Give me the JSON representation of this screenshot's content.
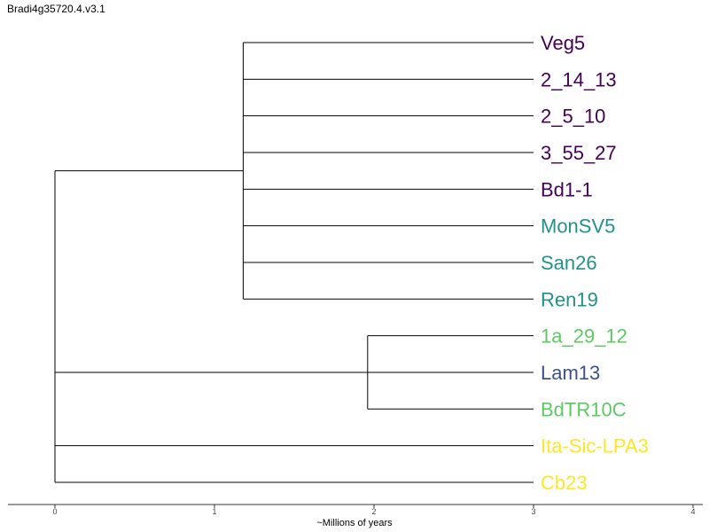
{
  "title": "Bradi4g35720.4.v3.1",
  "axis": {
    "label": "~Millions of years",
    "ticks": [
      0,
      1,
      2,
      3,
      4
    ],
    "range": [
      0,
      4
    ]
  },
  "colors": {
    "group_a": "#440154",
    "group_b": "#21918c",
    "group_c": "#3b528b",
    "group_d": "#5ec962",
    "group_e": "#fde725"
  },
  "tree": {
    "root_time": 0,
    "tips_time": 3,
    "clades": [
      {
        "node_time": 1.18,
        "tips": [
          {
            "label": "Veg5",
            "color": "#440154"
          },
          {
            "label": "2_14_13",
            "color": "#440154"
          },
          {
            "label": "2_5_10",
            "color": "#440154"
          },
          {
            "label": "3_55_27",
            "color": "#440154"
          },
          {
            "label": "Bd1-1",
            "color": "#440154"
          },
          {
            "label": "MonSV5",
            "color": "#21918c"
          },
          {
            "label": "San26",
            "color": "#21918c"
          },
          {
            "label": "Ren19",
            "color": "#21918c"
          }
        ]
      },
      {
        "node_time": 1.96,
        "tips": [
          {
            "label": "1a_29_12",
            "color": "#5ec962"
          },
          {
            "label": "Lam13",
            "color": "#3b528b"
          },
          {
            "label": "BdTR10C",
            "color": "#5ec962"
          }
        ]
      },
      {
        "node_time": null,
        "tips": [
          {
            "label": "Ita-Sic-LPA3",
            "color": "#fde725"
          }
        ]
      },
      {
        "node_time": null,
        "tips": [
          {
            "label": "Cb23",
            "color": "#fde725"
          }
        ]
      }
    ]
  }
}
